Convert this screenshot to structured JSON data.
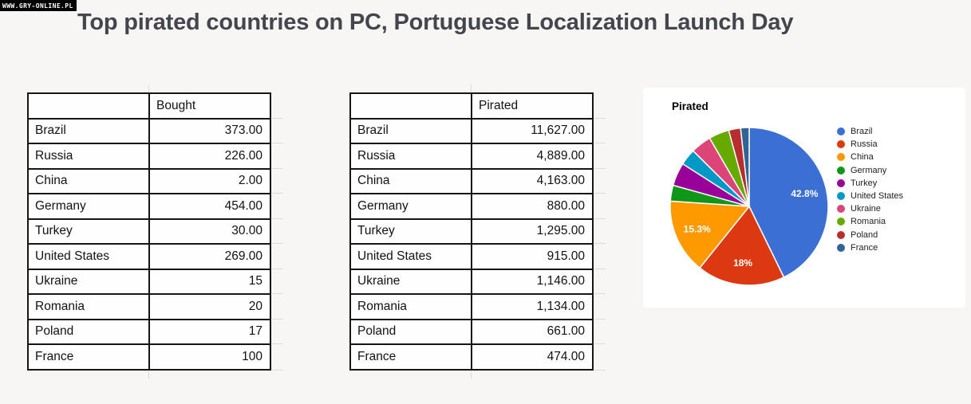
{
  "page": {
    "watermark": "WWW.GRY-ONLINE.PL",
    "title": "Top pirated countries on PC, Portuguese Localization Launch Day",
    "background_color": "#f7f6f5"
  },
  "tables": {
    "bought": {
      "header": "Bought",
      "rows": [
        {
          "country": "Brazil",
          "value": "373.00"
        },
        {
          "country": "Russia",
          "value": "226.00"
        },
        {
          "country": "China",
          "value": "2.00"
        },
        {
          "country": "Germany",
          "value": "454.00"
        },
        {
          "country": "Turkey",
          "value": "30.00"
        },
        {
          "country": "United States",
          "value": "269.00"
        },
        {
          "country": "Ukraine",
          "value": "15"
        },
        {
          "country": "Romania",
          "value": "20"
        },
        {
          "country": "Poland",
          "value": "17"
        },
        {
          "country": "France",
          "value": "100"
        }
      ]
    },
    "pirated": {
      "header": "Pirated",
      "rows": [
        {
          "country": "Brazil",
          "value": "11,627.00"
        },
        {
          "country": "Russia",
          "value": "4,889.00"
        },
        {
          "country": "China",
          "value": "4,163.00"
        },
        {
          "country": "Germany",
          "value": "880.00"
        },
        {
          "country": "Turkey",
          "value": "1,295.00"
        },
        {
          "country": "United States",
          "value": "915.00"
        },
        {
          "country": "Ukraine",
          "value": "1,146.00"
        },
        {
          "country": "Romania",
          "value": "1,134.00"
        },
        {
          "country": "Poland",
          "value": "661.00"
        },
        {
          "country": "France",
          "value": "474.00"
        }
      ]
    }
  },
  "chart_data": {
    "type": "pie",
    "title": "Pirated",
    "legend_position": "right",
    "start_angle": "12 o'clock",
    "direction": "clockwise",
    "slices": [
      {
        "label": "Brazil",
        "value": 11627,
        "percent_label": "42.8%",
        "color": "#3b6fd4"
      },
      {
        "label": "Russia",
        "value": 4889,
        "percent_label": "18%",
        "color": "#dc3912"
      },
      {
        "label": "China",
        "value": 4163,
        "percent_label": "15.3%",
        "color": "#ff9900"
      },
      {
        "label": "Germany",
        "value": 880,
        "percent_label": "",
        "color": "#109618"
      },
      {
        "label": "Turkey",
        "value": 1295,
        "percent_label": "",
        "color": "#990099"
      },
      {
        "label": "United States",
        "value": 915,
        "percent_label": "",
        "color": "#0099c6"
      },
      {
        "label": "Ukraine",
        "value": 1146,
        "percent_label": "",
        "color": "#dd4477"
      },
      {
        "label": "Romania",
        "value": 1134,
        "percent_label": "",
        "color": "#66aa00"
      },
      {
        "label": "Poland",
        "value": 661,
        "percent_label": "",
        "color": "#b82e2e"
      },
      {
        "label": "France",
        "value": 474,
        "percent_label": "",
        "color": "#316395"
      }
    ]
  }
}
